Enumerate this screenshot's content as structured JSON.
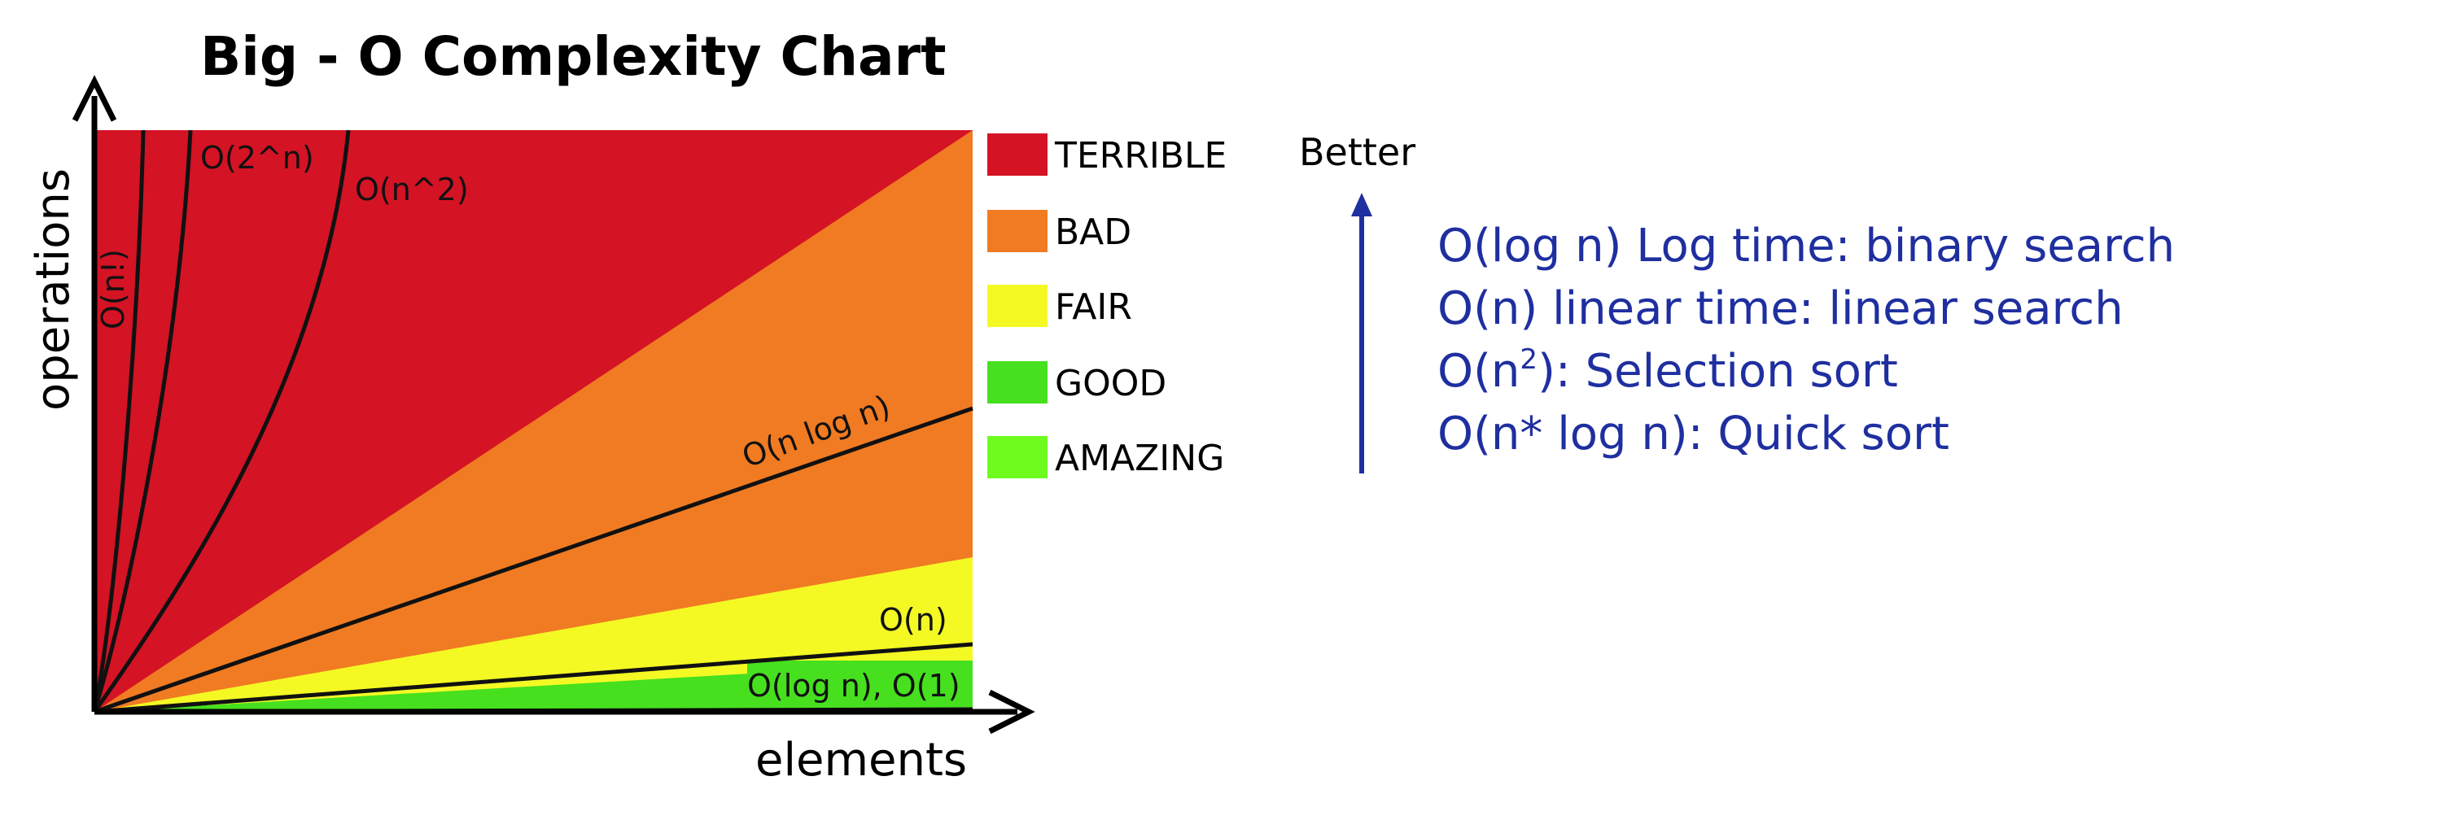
{
  "chart_data": {
    "type": "area",
    "title": "Big - O Complexity Chart",
    "xlabel": "elements",
    "ylabel": "operations",
    "grid": false,
    "legend_position": "right",
    "regions": [
      {
        "name": "TERRIBLE",
        "color": "#d41324"
      },
      {
        "name": "BAD",
        "color": "#f07b22"
      },
      {
        "name": "FAIR",
        "color": "#f4f924"
      },
      {
        "name": "GOOD",
        "color": "#46e01f"
      },
      {
        "name": "AMAZING",
        "color": "#6dfc1e"
      }
    ],
    "curves": [
      {
        "name": "O(n!)",
        "class": "TERRIBLE"
      },
      {
        "name": "O(2^n)",
        "class": "TERRIBLE"
      },
      {
        "name": "O(n^2)",
        "class": "TERRIBLE"
      },
      {
        "name": "O(n log n)",
        "class": "BAD"
      },
      {
        "name": "O(n)",
        "class": "FAIR"
      },
      {
        "name": "O(log n), O(1)",
        "class": "GOOD"
      }
    ]
  },
  "annotation": {
    "better_label": "Better",
    "arrow_color": "#1f2fa0",
    "lines": [
      {
        "text": "O(log n) Log time: binary search"
      },
      {
        "text": "O(n) linear time: linear search"
      },
      {
        "text_before": "O(n",
        "sup": "2",
        "text_after": "): Selection sort"
      },
      {
        "text": "O(n* log n): Quick sort"
      }
    ]
  }
}
